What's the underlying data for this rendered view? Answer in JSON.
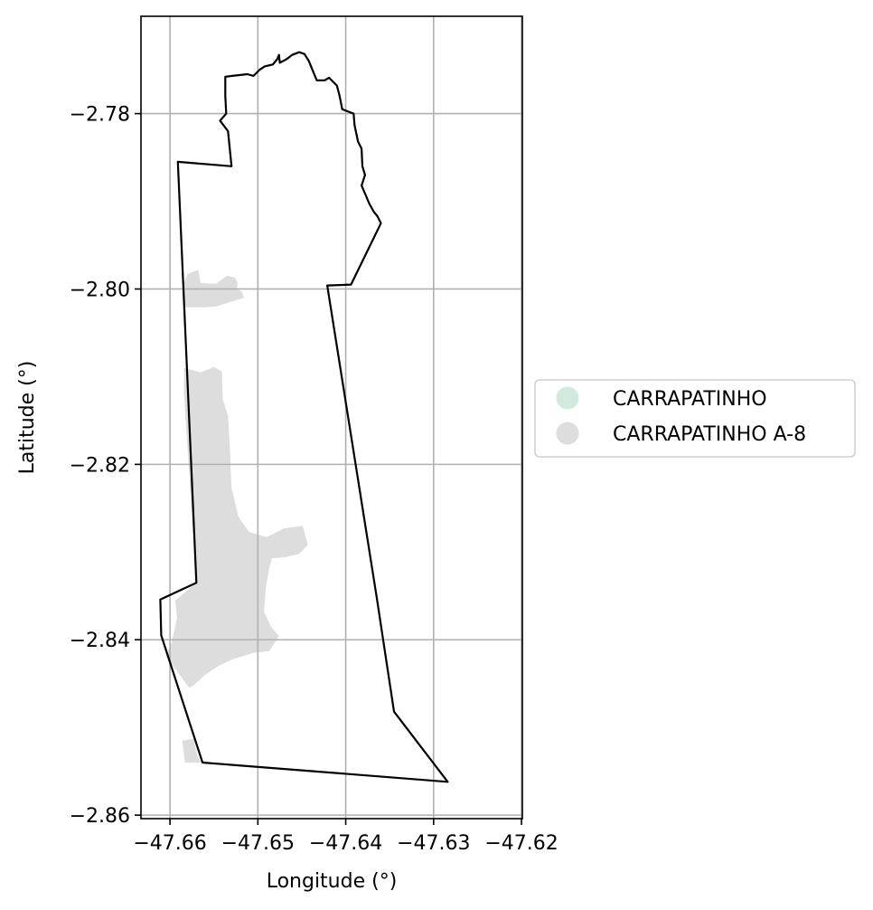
{
  "map": {
    "xlabel": "Longitude (°)",
    "ylabel": "Latitude (°)",
    "xlim": [
      -47.6633,
      -47.6199
    ],
    "ylim": [
      -2.8604,
      -2.7689
    ],
    "xticks": [
      -47.66,
      -47.65,
      -47.64,
      -47.63,
      -47.62
    ],
    "xtick_labels": [
      "−47.66",
      "−47.65",
      "−47.64",
      "−47.63",
      "−47.62"
    ],
    "yticks": [
      -2.78,
      -2.8,
      -2.82,
      -2.84,
      -2.86
    ],
    "ytick_labels": [
      "−2.78",
      "−2.80",
      "−2.82",
      "−2.84",
      "−2.86"
    ],
    "grid": true,
    "legend_placement": "outside-right",
    "legend": [
      {
        "label": "CARRAPATINHO",
        "color": "#d0ebdd"
      },
      {
        "label": "CARRAPATINHO A-8",
        "color": "#dddddd"
      }
    ],
    "boundary_color": "#000000",
    "boundary": [
      [
        -47.6461,
        -2.7733
      ],
      [
        -47.6453,
        -2.773
      ],
      [
        -47.6447,
        -2.7732
      ],
      [
        -47.6442,
        -2.774
      ],
      [
        -47.6433,
        -2.7762
      ],
      [
        -47.6424,
        -2.7762
      ],
      [
        -47.6419,
        -2.7759
      ],
      [
        -47.641,
        -2.7768
      ],
      [
        -47.6407,
        -2.778
      ],
      [
        -47.6404,
        -2.7795
      ],
      [
        -47.6391,
        -2.78
      ],
      [
        -47.639,
        -2.7813
      ],
      [
        -47.6389,
        -2.7818
      ],
      [
        -47.6386,
        -2.7832
      ],
      [
        -47.6382,
        -2.784
      ],
      [
        -47.6381,
        -2.786
      ],
      [
        -47.6378,
        -2.787
      ],
      [
        -47.6382,
        -2.7882
      ],
      [
        -47.6373,
        -2.7903
      ],
      [
        -47.6368,
        -2.7912
      ],
      [
        -47.6364,
        -2.7917
      ],
      [
        -47.636,
        -2.7925
      ],
      [
        -47.6394,
        -2.7995
      ],
      [
        -47.6421,
        -2.7996
      ],
      [
        -47.6365,
        -2.835
      ],
      [
        -47.6345,
        -2.8482
      ],
      [
        -47.6284,
        -2.8562
      ],
      [
        -47.6563,
        -2.854
      ],
      [
        -47.661,
        -2.8395
      ],
      [
        -47.6611,
        -2.8354
      ],
      [
        -47.657,
        -2.8335
      ],
      [
        -47.6591,
        -2.7855
      ],
      [
        -47.653,
        -2.786
      ],
      [
        -47.6534,
        -2.782
      ],
      [
        -47.6543,
        -2.7808
      ],
      [
        -47.6536,
        -2.78
      ],
      [
        -47.6537,
        -2.778
      ],
      [
        -47.6537,
        -2.7758
      ],
      [
        -47.6529,
        -2.7757
      ],
      [
        -47.6512,
        -2.7755
      ],
      [
        -47.6505,
        -2.7757
      ],
      [
        -47.6498,
        -2.775
      ],
      [
        -47.6492,
        -2.7746
      ],
      [
        -47.6483,
        -2.7744
      ],
      [
        -47.6478,
        -2.7738
      ],
      [
        -47.6476,
        -2.7733
      ],
      [
        -47.6475,
        -2.7742
      ],
      [
        -47.6471,
        -2.774
      ],
      [
        -47.6466,
        -2.7737
      ],
      [
        -47.6461,
        -2.7733
      ]
    ],
    "areas": [
      {
        "label": "CARRAPATINHO A-8",
        "color": "#dddddd",
        "polygon": [
          [
            -47.6585,
            -2.7995
          ],
          [
            -47.658,
            -2.7983
          ],
          [
            -47.6568,
            -2.7978
          ],
          [
            -47.6565,
            -2.7993
          ],
          [
            -47.6548,
            -2.7994
          ],
          [
            -47.6535,
            -2.7985
          ],
          [
            -47.6526,
            -2.7987
          ],
          [
            -47.6523,
            -2.7993
          ],
          [
            -47.6524,
            -2.8
          ],
          [
            -47.6518,
            -2.8003
          ],
          [
            -47.6516,
            -2.801
          ],
          [
            -47.6535,
            -2.8016
          ],
          [
            -47.6548,
            -2.802
          ],
          [
            -47.6562,
            -2.8021
          ],
          [
            -47.6583,
            -2.8021
          ],
          [
            -47.6585,
            -2.801
          ]
        ]
      },
      {
        "label": "CARRAPATINHO A-8",
        "color": "#dddddd",
        "polygon": [
          [
            -47.6584,
            -2.809
          ],
          [
            -47.6565,
            -2.8095
          ],
          [
            -47.655,
            -2.8089
          ],
          [
            -47.6541,
            -2.8094
          ],
          [
            -47.654,
            -2.8125
          ],
          [
            -47.6534,
            -2.8145
          ],
          [
            -47.6532,
            -2.8178
          ],
          [
            -47.653,
            -2.8227
          ],
          [
            -47.6522,
            -2.826
          ],
          [
            -47.651,
            -2.8277
          ],
          [
            -47.649,
            -2.8283
          ],
          [
            -47.647,
            -2.8273
          ],
          [
            -47.6449,
            -2.827
          ],
          [
            -47.6443,
            -2.8292
          ],
          [
            -47.6453,
            -2.8302
          ],
          [
            -47.647,
            -2.8306
          ],
          [
            -47.6484,
            -2.8307
          ],
          [
            -47.6487,
            -2.8318
          ],
          [
            -47.6491,
            -2.834
          ],
          [
            -47.6493,
            -2.8368
          ],
          [
            -47.6485,
            -2.8385
          ],
          [
            -47.6476,
            -2.8396
          ],
          [
            -47.6487,
            -2.8413
          ],
          [
            -47.6505,
            -2.8415
          ],
          [
            -47.6528,
            -2.8422
          ],
          [
            -47.6545,
            -2.843
          ],
          [
            -47.656,
            -2.844
          ],
          [
            -47.6572,
            -2.8451
          ],
          [
            -47.6578,
            -2.8455
          ],
          [
            -47.6605,
            -2.8418
          ],
          [
            -47.6598,
            -2.8403
          ],
          [
            -47.6592,
            -2.8375
          ],
          [
            -47.6594,
            -2.8355
          ],
          [
            -47.657,
            -2.8335
          ],
          [
            -47.6584,
            -2.812
          ]
        ]
      },
      {
        "label": "CARRAPATINHO A-8",
        "color": "#dddddd",
        "polygon": [
          [
            -47.6586,
            -2.8515
          ],
          [
            -47.6573,
            -2.8513
          ],
          [
            -47.6569,
            -2.8532
          ],
          [
            -47.6565,
            -2.854
          ],
          [
            -47.6583,
            -2.854
          ]
        ]
      }
    ]
  }
}
